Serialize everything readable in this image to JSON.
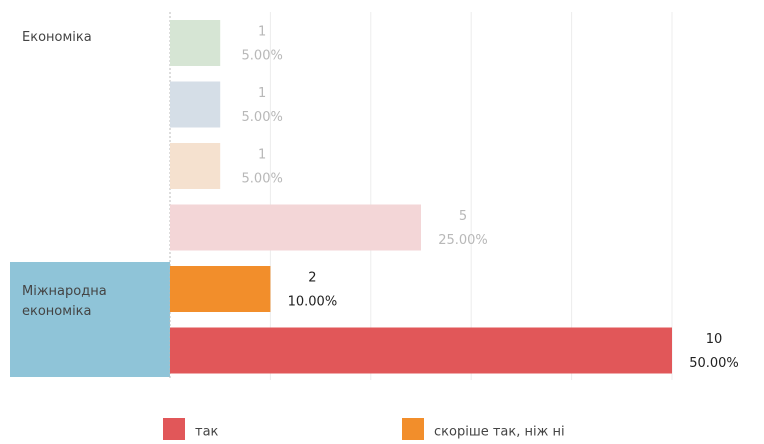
{
  "chart_data": {
    "type": "bar",
    "xlim": [
      0,
      10
    ],
    "xticks": [
      0,
      2,
      4,
      6,
      8,
      10
    ],
    "grid": true,
    "groups": [
      {
        "name": "Економіка",
        "selected": false,
        "counts": [
          1,
          1,
          1,
          5
        ],
        "percents": [
          5,
          5,
          5,
          25
        ],
        "value_labels": [
          "5.00%",
          "5.00%",
          "5.00%",
          "25.00%"
        ],
        "colors": [
          "#d6e5d4",
          "#d5dee7",
          "#f5e1cf",
          "#f3d6d7"
        ]
      },
      {
        "name": "Міжнародна економіка",
        "selected": true,
        "counts": [
          2,
          10
        ],
        "percents": [
          10,
          50
        ],
        "value_labels": [
          "10.00%",
          "50.00%"
        ],
        "colors": [
          "#f28e2b",
          "#e15759"
        ]
      }
    ],
    "legend": [
      {
        "name": "так",
        "color": "#e15759"
      },
      {
        "name": "скоріше так, ніж ні",
        "color": "#f28e2b"
      }
    ]
  }
}
